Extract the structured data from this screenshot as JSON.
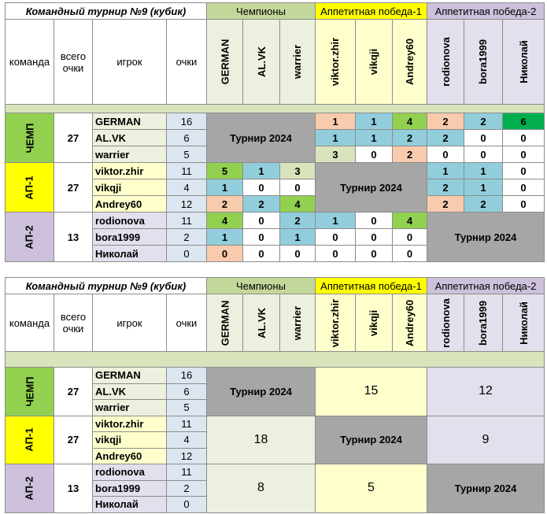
{
  "tables": [
    {
      "header": {
        "title": "Командный турнир №9 (кубик)",
        "groups": [
          "Чемпионы",
          "Аппетитная победа-1",
          "Аппетитная победа-2"
        ],
        "columns": [
          "команда",
          "всего очки",
          "игрок",
          "очки"
        ],
        "players": [
          "GERMAN",
          "AL.VK",
          "warrier",
          "viktor.zhir",
          "vikqji",
          "Andrey60",
          "rodionova",
          "bora1999",
          "Николай"
        ]
      },
      "teams": [
        {
          "name": "ЧЕМП",
          "total": 27,
          "players": [
            {
              "name": "GERMAN",
              "points": 16
            },
            {
              "name": "AL.VK",
              "points": 6
            },
            {
              "name": "warrier",
              "points": 5
            }
          ]
        },
        {
          "name": "АП-1",
          "total": 27,
          "players": [
            {
              "name": "viktor.zhir",
              "points": 11
            },
            {
              "name": "vikqji",
              "points": 4
            },
            {
              "name": "Andrey60",
              "points": 12
            }
          ]
        },
        {
          "name": "АП-2",
          "total": 13,
          "players": [
            {
              "name": "rodionova",
              "points": 11
            },
            {
              "name": "bora1999",
              "points": 2
            },
            {
              "name": "Николай",
              "points": 0
            }
          ]
        }
      ],
      "diagonal_label": "Турнир 2024",
      "scores": [
        [
          null,
          null,
          null,
          1,
          1,
          4,
          2,
          2,
          6
        ],
        [
          null,
          null,
          null,
          1,
          1,
          2,
          2,
          0,
          0
        ],
        [
          null,
          null,
          null,
          3,
          0,
          2,
          0,
          0,
          0
        ],
        [
          5,
          1,
          3,
          null,
          null,
          null,
          1,
          1,
          0
        ],
        [
          1,
          0,
          0,
          null,
          null,
          null,
          2,
          1,
          0
        ],
        [
          2,
          2,
          4,
          null,
          null,
          null,
          2,
          2,
          0
        ],
        [
          4,
          0,
          2,
          1,
          0,
          4,
          null,
          null,
          null
        ],
        [
          1,
          0,
          1,
          0,
          0,
          0,
          null,
          null,
          null
        ],
        [
          0,
          0,
          0,
          0,
          0,
          0,
          null,
          null,
          null
        ]
      ],
      "score_colors": [
        [
          null,
          null,
          null,
          "#f8cbad",
          "#92cddc",
          "#92d050",
          "#f8cbad",
          "#92cddc",
          "#00b050"
        ],
        [
          null,
          null,
          null,
          "#92cddc",
          "#92cddc",
          "#92cddc",
          "#92cddc",
          "#ffffff",
          "#ffffff"
        ],
        [
          null,
          null,
          null,
          "#d8e4bc",
          "#ffffff",
          "#f8cbad",
          "#ffffff",
          "#ffffff",
          "#ffffff"
        ],
        [
          "#92d050",
          "#92cddc",
          "#d8e4bc",
          null,
          null,
          null,
          "#92cddc",
          "#92cddc",
          "#ffffff"
        ],
        [
          "#92cddc",
          "#ffffff",
          "#ffffff",
          null,
          null,
          null,
          "#92cddc",
          "#92cddc",
          "#ffffff"
        ],
        [
          "#f8cbad",
          "#92cddc",
          "#92d050",
          null,
          null,
          null,
          "#f8cbad",
          "#92cddc",
          "#ffffff"
        ],
        [
          "#92d050",
          "#ffffff",
          "#92cddc",
          "#92cddc",
          "#ffffff",
          "#92d050",
          null,
          null,
          null
        ],
        [
          "#92cddc",
          "#ffffff",
          "#92cddc",
          "#ffffff",
          "#ffffff",
          "#ffffff",
          null,
          null,
          null
        ],
        [
          "#f8cbad",
          "#ffffff",
          "#ffffff",
          "#ffffff",
          "#ffffff",
          "#ffffff",
          null,
          null,
          null
        ]
      ]
    },
    {
      "header": {
        "title": "Командный турнир №9 (кубик)",
        "groups": [
          "Чемпионы",
          "Аппетитная победа-1",
          "Аппетитная победа-2"
        ],
        "columns": [
          "команда",
          "всего очки",
          "игрок",
          "очки"
        ],
        "players": [
          "GERMAN",
          "AL.VK",
          "warrier",
          "viktor.zhir",
          "vikqji",
          "Andrey60",
          "rodionova",
          "bora1999",
          "Николай"
        ]
      },
      "teams": [
        {
          "name": "ЧЕМП",
          "total": 27,
          "players": [
            {
              "name": "GERMAN",
              "points": 16
            },
            {
              "name": "AL.VK",
              "points": 6
            },
            {
              "name": "warrier",
              "points": 5
            }
          ]
        },
        {
          "name": "АП-1",
          "total": 27,
          "players": [
            {
              "name": "viktor.zhir",
              "points": 11
            },
            {
              "name": "vikqji",
              "points": 4
            },
            {
              "name": "Andrey60",
              "points": 12
            }
          ]
        },
        {
          "name": "АП-2",
          "total": 13,
          "players": [
            {
              "name": "rodionova",
              "points": 11
            },
            {
              "name": "bora1999",
              "points": 2
            },
            {
              "name": "Николай",
              "points": 0
            }
          ]
        }
      ],
      "diagonal_label": "Турнир 2024",
      "blocks": [
        [
          null,
          15,
          12
        ],
        [
          18,
          null,
          9
        ],
        [
          8,
          5,
          null
        ]
      ]
    }
  ]
}
